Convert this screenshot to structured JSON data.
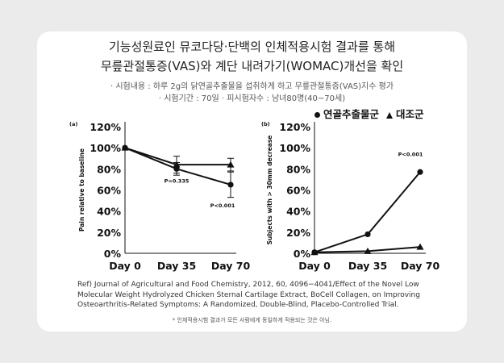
{
  "title_line1": "기능성원료인 뮤코다당·단백의 인체적용시험 결과를 통해",
  "title_line2": "무릎관절통증(VAS)와 계단 내려가기(WOMAC)개선을 확인",
  "info_line1": "· 시험내용 : 하루 2g의 닭연골추출물을 섭취하게 하고 무릎관절통증(VAS)지수 평가",
  "info_line2": "· 시험기간 : 70일    · 피시험자수 : 남녀80명(40~70세)",
  "legend": {
    "series1": "연골추출물군",
    "series2": "대조군"
  },
  "reference": "Ref) Journal of Agricultural and Food Chemistry, 2012, 60, 4096−4041/Effect of the Novel Low Molecular Weight Hydrolyzed Chicken Sternal Cartilage Extract, BoCell Collagen, on Improving Osteoarthritis-Related Symptoms: A Randomized, Double-Blind, Placebo-Controlled Trial.",
  "footnote": "* 인체적용시험 결과가 모든 사람에게 동일하게 적용되는 것은 아님.",
  "chart_data": [
    {
      "type": "line",
      "panel_label": "(a)",
      "categories": [
        "Day 0",
        "Day 35",
        "Day 70"
      ],
      "ylabel": "Pain relative to baseline",
      "yticks": [
        "0%",
        "20%",
        "40%",
        "60%",
        "80%",
        "100%",
        "120%"
      ],
      "ylim": [
        0,
        120
      ],
      "series": [
        {
          "name": "연골추출물군",
          "marker": "circle",
          "values": [
            100,
            80,
            65
          ],
          "error": [
            0,
            6,
            12
          ]
        },
        {
          "name": "대조군",
          "marker": "triangle",
          "values": [
            100,
            84,
            84
          ],
          "error": [
            0,
            8,
            6
          ]
        }
      ],
      "annotations": [
        {
          "text": "P=0.335",
          "at": "Day 35"
        },
        {
          "text": "P<0.001",
          "at": "Day 70"
        }
      ]
    },
    {
      "type": "line",
      "panel_label": "(b)",
      "categories": [
        "Day 0",
        "Day 35",
        "Day 70"
      ],
      "ylabel": "Subjects with > 30mm decrease",
      "yticks": [
        "0%",
        "20%",
        "40%",
        "60%",
        "80%",
        "100%",
        "120%"
      ],
      "ylim": [
        0,
        120
      ],
      "series": [
        {
          "name": "연골추출물군",
          "marker": "circle",
          "values": [
            1,
            18,
            77
          ]
        },
        {
          "name": "대조군",
          "marker": "triangle",
          "values": [
            1,
            2,
            6
          ]
        }
      ],
      "annotations": [
        {
          "text": "P<0.001",
          "at": "Day 70"
        }
      ]
    }
  ]
}
